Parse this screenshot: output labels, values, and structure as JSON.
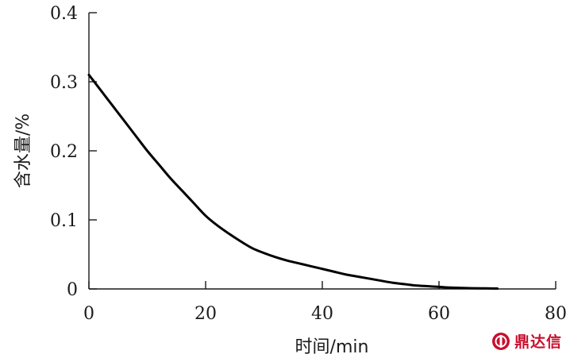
{
  "chart_data": {
    "type": "line",
    "xlabel": "时间/min",
    "ylabel": "含水量/%",
    "xlim": [
      0,
      80
    ],
    "ylim": [
      0,
      0.4
    ],
    "x_ticks": [
      0,
      20,
      40,
      60,
      80
    ],
    "y_ticks": [
      0,
      0.1,
      0.2,
      0.3,
      0.4
    ],
    "x_tick_labels": [
      "0",
      "20",
      "40",
      "60",
      "80"
    ],
    "y_tick_labels": [
      "0",
      "0.1",
      "0.2",
      "0.3",
      "0.4"
    ],
    "grid": false,
    "series": [
      {
        "x": [
          0,
          2,
          4,
          6,
          8,
          10,
          12,
          14,
          16,
          18,
          20,
          22,
          24,
          26,
          28,
          30,
          32,
          34,
          36,
          38,
          40,
          42,
          44,
          46,
          48,
          50,
          52,
          54,
          56,
          58,
          60,
          62,
          64,
          66,
          68,
          70
        ],
        "values": [
          0.31,
          0.288,
          0.266,
          0.244,
          0.222,
          0.2,
          0.18,
          0.16,
          0.142,
          0.124,
          0.106,
          0.092,
          0.08,
          0.069,
          0.059,
          0.052,
          0.046,
          0.041,
          0.037,
          0.033,
          0.029,
          0.025,
          0.021,
          0.018,
          0.015,
          0.012,
          0.009,
          0.007,
          0.005,
          0.004,
          0.003,
          0.002,
          0.0015,
          0.001,
          0.0008,
          0.0005
        ],
        "color": "#000000"
      }
    ]
  },
  "watermark": {
    "text": "鼎达信",
    "color": "#c8102e",
    "icon": "logo-icon"
  }
}
